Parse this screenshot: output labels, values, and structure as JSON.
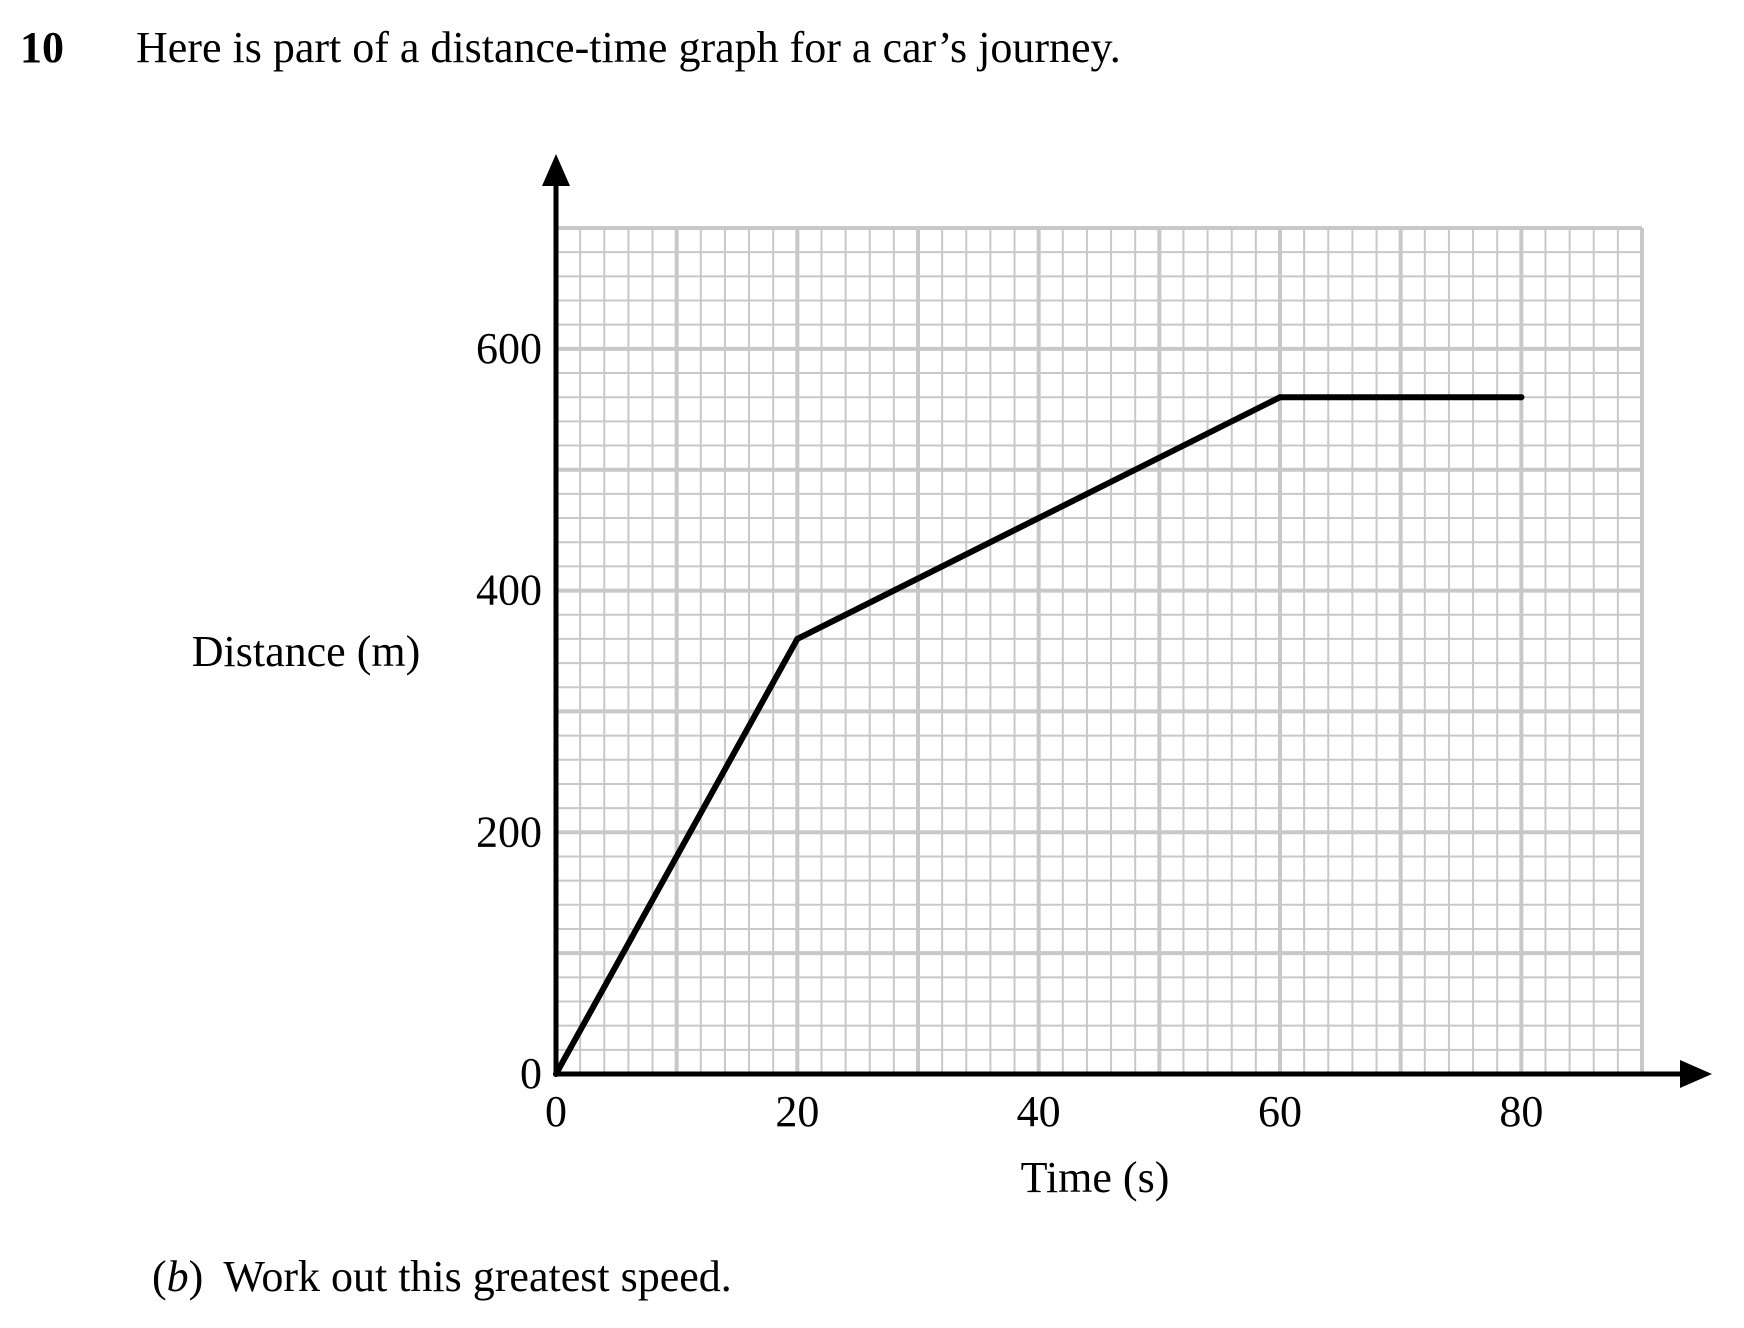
{
  "question": {
    "number": "10",
    "text": "Here is part of a distance-time graph for a car’s journey."
  },
  "part_b": {
    "open_paren": "(",
    "letter": "b",
    "close_paren": ")",
    "text": "Work out this greatest speed."
  },
  "chart_data": {
    "type": "line",
    "title": "",
    "xlabel": "Time (s)",
    "ylabel": "Distance (m)",
    "xlim": [
      0,
      90
    ],
    "ylim": [
      0,
      700
    ],
    "x_ticks": [
      0,
      20,
      40,
      60,
      80
    ],
    "y_ticks": [
      0,
      200,
      400,
      600
    ],
    "x_tick_labels": [
      "0",
      "20",
      "40",
      "60",
      "80"
    ],
    "y_tick_labels": [
      "0",
      "200",
      "400",
      "600"
    ],
    "grid": true,
    "grid_minor_step_x": 2,
    "grid_minor_step_y": 20,
    "grid_major_step_x": 10,
    "grid_major_step_y": 100,
    "series": [
      {
        "x": [
          0,
          20,
          60,
          80
        ],
        "y": [
          0,
          360,
          560,
          560
        ]
      }
    ],
    "colors": {
      "line": "#000000",
      "axes": "#000000",
      "grid": "#c8c8c8"
    }
  }
}
